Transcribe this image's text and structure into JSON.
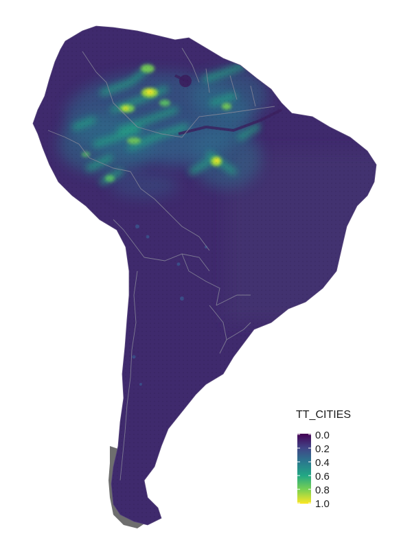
{
  "legend": {
    "title": "TT_CITIES",
    "ticks": [
      "0.0",
      "0.2",
      "0.4",
      "0.6",
      "0.8",
      "1.0"
    ]
  },
  "colors": {
    "background": "#ffffff",
    "land_base": "#3f2a6d",
    "border": "#7f7f8f",
    "unmapped_islands": "#6e6e6e",
    "viridis_0": "#440154",
    "viridis_0_2": "#414487",
    "viridis_0_4": "#2a788e",
    "viridis_0_6": "#22a884",
    "viridis_0_8": "#7ad151",
    "viridis_1_0": "#fde725"
  }
}
